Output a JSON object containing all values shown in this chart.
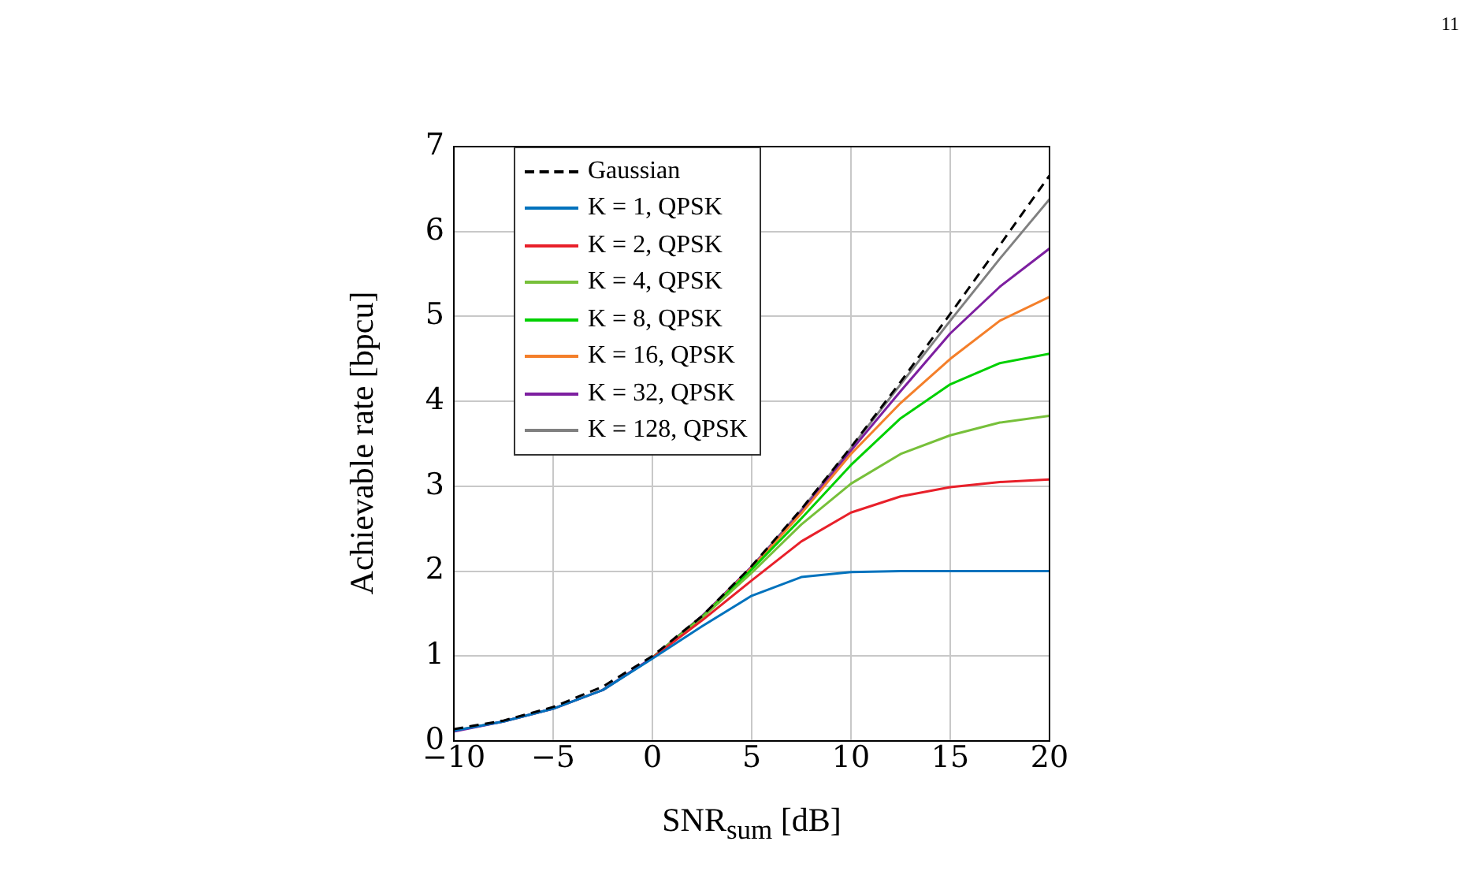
{
  "chart_data": {
    "type": "line",
    "xlabel": "SNR$_{sum}$ [dB]",
    "ylabel": "Achievable rate [bpcu]",
    "annotations": [
      "11"
    ],
    "x": [
      -10,
      -7.5,
      -5,
      -2.5,
      0,
      2.5,
      5,
      7.5,
      10,
      12.5,
      15,
      17.5,
      20
    ],
    "xlim": [
      -10,
      20
    ],
    "xticks": [
      -10,
      -5,
      0,
      5,
      10,
      15,
      20
    ],
    "ylim": [
      0,
      7
    ],
    "yticks": [
      0,
      1,
      2,
      3,
      4,
      5,
      6,
      7
    ],
    "grid": true,
    "legend": "top left",
    "marker": "none",
    "line_style": "solid",
    "series": [
      {
        "name": "Gaussian",
        "color": "#000000",
        "line_style": "dashed",
        "values": [
          0.14,
          0.24,
          0.4,
          0.64,
          1.0,
          1.47,
          2.06,
          2.73,
          3.46,
          4.23,
          5.03,
          5.84,
          6.66
        ]
      },
      {
        "name": "K = 1, QPSK",
        "color": "#0072bd",
        "values": [
          0.12,
          0.23,
          0.38,
          0.6,
          0.97,
          1.35,
          1.71,
          1.93,
          1.99,
          2.0,
          2.0,
          2.0,
          2.0
        ]
      },
      {
        "name": "K = 2, QPSK",
        "color": "#e8202a",
        "values": [
          null,
          null,
          null,
          null,
          0.98,
          1.42,
          1.89,
          2.35,
          2.69,
          2.88,
          2.99,
          3.05,
          3.08
        ]
      },
      {
        "name": "K = 4, QPSK",
        "color": "#77c03a",
        "values": [
          null,
          null,
          null,
          null,
          0.98,
          1.45,
          1.98,
          2.55,
          3.03,
          3.38,
          3.6,
          3.75,
          3.83
        ]
      },
      {
        "name": "K = 8, QPSK",
        "color": "#00d000",
        "values": [
          null,
          null,
          null,
          null,
          0.98,
          1.46,
          2.02,
          2.62,
          3.25,
          3.8,
          4.2,
          4.45,
          4.56
        ]
      },
      {
        "name": "K = 16, QPSK",
        "color": "#f47f2a",
        "values": [
          null,
          null,
          null,
          null,
          0.98,
          1.46,
          2.04,
          2.68,
          3.38,
          3.98,
          4.5,
          4.95,
          5.23
        ]
      },
      {
        "name": "K = 32, QPSK",
        "color": "#7d1fa0",
        "values": [
          0.11,
          0.23,
          0.38,
          0.6,
          0.98,
          1.47,
          2.05,
          2.7,
          3.42,
          4.12,
          4.8,
          5.35,
          5.8
        ]
      },
      {
        "name": "K = 128, QPSK",
        "color": "#808080",
        "values": [
          0.12,
          0.23,
          0.38,
          0.6,
          0.98,
          1.47,
          2.05,
          2.72,
          3.45,
          4.2,
          4.95,
          5.68,
          6.38
        ]
      }
    ]
  }
}
